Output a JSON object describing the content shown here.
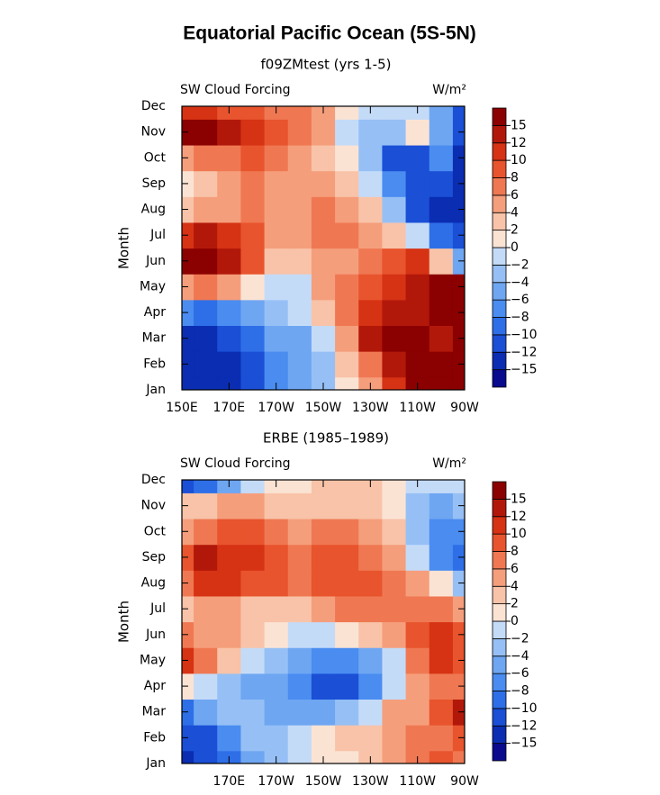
{
  "title": "Equatorial Pacific Ocean (5S-5N)",
  "chart_data": [
    {
      "type": "contour",
      "subtitle": "f09ZMtest (yrs 1-5)",
      "left_label": "SW Cloud Forcing",
      "right_label": "W/m²",
      "ylabel": "Month",
      "categories": [
        "Jan",
        "Feb",
        "Mar",
        "Apr",
        "May",
        "Jun",
        "Jul",
        "Aug",
        "Sep",
        "Oct",
        "Nov",
        "Dec"
      ],
      "x": [
        150,
        160,
        170,
        180,
        190,
        200,
        210,
        220,
        230,
        240,
        250,
        260,
        270
      ],
      "xlim": [
        150,
        270
      ],
      "xticks": [
        {
          "value": 150,
          "label": "150E"
        },
        {
          "value": 170,
          "label": "170E"
        },
        {
          "value": 190,
          "label": "170W"
        },
        {
          "value": 210,
          "label": "150W"
        },
        {
          "value": 230,
          "label": "130W"
        },
        {
          "value": 250,
          "label": "110W"
        },
        {
          "value": 270,
          "label": "90W"
        }
      ],
      "z": [
        [
          -15,
          -15,
          -15,
          -12,
          -8,
          -6,
          -4,
          0,
          4,
          10,
          15,
          15,
          15
        ],
        [
          -15,
          -15,
          -15,
          -12,
          -8,
          -6,
          -4,
          2,
          6,
          12,
          15,
          15,
          15
        ],
        [
          -15,
          -15,
          -12,
          -10,
          -6,
          -6,
          -2,
          4,
          12,
          15,
          15,
          12,
          15
        ],
        [
          -8,
          -10,
          -8,
          -6,
          -4,
          -2,
          2,
          6,
          10,
          12,
          12,
          15,
          15
        ],
        [
          4,
          6,
          4,
          0,
          -2,
          -2,
          4,
          6,
          8,
          10,
          12,
          15,
          15
        ],
        [
          15,
          15,
          12,
          8,
          2,
          2,
          4,
          4,
          6,
          8,
          10,
          2,
          -6
        ],
        [
          10,
          12,
          10,
          8,
          4,
          4,
          6,
          6,
          4,
          2,
          -2,
          -10,
          -12
        ],
        [
          2,
          4,
          4,
          6,
          4,
          4,
          6,
          4,
          2,
          -4,
          -12,
          -15,
          -15
        ],
        [
          0,
          2,
          4,
          6,
          4,
          4,
          4,
          2,
          -2,
          -8,
          -12,
          -12,
          -15
        ],
        [
          4,
          6,
          6,
          8,
          6,
          4,
          2,
          0,
          -4,
          -12,
          -12,
          -8,
          -15
        ],
        [
          15,
          15,
          12,
          10,
          8,
          6,
          4,
          -2,
          -4,
          -4,
          0,
          -6,
          -12
        ],
        [
          10,
          10,
          8,
          8,
          6,
          6,
          4,
          0,
          -2,
          -2,
          -2,
          -6,
          -12
        ]
      ],
      "levels": [
        {
          "value": -15,
          "label": "−15"
        },
        {
          "value": -12,
          "label": "−12"
        },
        {
          "value": -10,
          "label": "−10"
        },
        {
          "value": -8,
          "label": "−8"
        },
        {
          "value": -6,
          "label": "−6"
        },
        {
          "value": -4,
          "label": "−4"
        },
        {
          "value": -2,
          "label": "−2"
        },
        0,
        2,
        4,
        6,
        8,
        10,
        12,
        15
      ],
      "colors": [
        "#0a0a8c",
        "#0b2db2",
        "#1a4fd6",
        "#2e6fe8",
        "#4a8cf0",
        "#6ea6f2",
        "#96c0f5",
        "#c4dbf8",
        "#fbe3d4",
        "#f8c3a8",
        "#f59e7c",
        "#ef7852",
        "#e8542d",
        "#d63214",
        "#b2180a",
        "#8b0000"
      ]
    },
    {
      "type": "contour",
      "subtitle": "ERBE (1985–1989)",
      "left_label": "SW Cloud Forcing",
      "right_label": "W/m²",
      "ylabel": "Month",
      "categories": [
        "Jan",
        "Feb",
        "Mar",
        "Apr",
        "May",
        "Jun",
        "Jul",
        "Aug",
        "Sep",
        "Oct",
        "Nov",
        "Dec"
      ],
      "x": [
        150,
        160,
        170,
        180,
        190,
        200,
        210,
        220,
        230,
        240,
        250,
        260,
        270
      ],
      "xlim": [
        150,
        270
      ],
      "xticks": [
        {
          "value": 170,
          "label": "170E"
        },
        {
          "value": 190,
          "label": "170W"
        },
        {
          "value": 210,
          "label": "150W"
        },
        {
          "value": 230,
          "label": "130W"
        },
        {
          "value": 250,
          "label": "110W"
        },
        {
          "value": 270,
          "label": "90W"
        }
      ],
      "z": [
        [
          -15,
          -12,
          -10,
          -6,
          -4,
          -2,
          0,
          0,
          2,
          4,
          6,
          8,
          6
        ],
        [
          -12,
          -12,
          -8,
          -4,
          -4,
          -2,
          0,
          2,
          2,
          4,
          6,
          6,
          8
        ],
        [
          -10,
          -6,
          -4,
          -4,
          -6,
          -6,
          -6,
          -4,
          -2,
          4,
          4,
          8,
          12
        ],
        [
          0,
          -2,
          -4,
          -6,
          -6,
          -8,
          -12,
          -12,
          -8,
          -2,
          4,
          6,
          6
        ],
        [
          10,
          6,
          2,
          -2,
          -4,
          -6,
          -8,
          -8,
          -6,
          -2,
          6,
          10,
          8
        ],
        [
          6,
          4,
          4,
          2,
          0,
          -2,
          -2,
          0,
          2,
          4,
          8,
          10,
          8
        ],
        [
          2,
          4,
          4,
          2,
          2,
          2,
          4,
          6,
          6,
          6,
          6,
          6,
          4
        ],
        [
          6,
          10,
          10,
          8,
          8,
          6,
          8,
          8,
          8,
          6,
          4,
          0,
          -4
        ],
        [
          8,
          12,
          10,
          10,
          8,
          6,
          8,
          8,
          6,
          4,
          -2,
          -8,
          -10
        ],
        [
          4,
          6,
          8,
          8,
          6,
          4,
          6,
          6,
          4,
          2,
          -4,
          -8,
          -8
        ],
        [
          2,
          2,
          4,
          4,
          2,
          2,
          2,
          2,
          2,
          0,
          -4,
          -6,
          -4
        ],
        [
          -12,
          -10,
          -6,
          -2,
          0,
          0,
          2,
          2,
          2,
          0,
          -2,
          -2,
          -2
        ]
      ],
      "levels": [
        {
          "value": -15,
          "label": "−15"
        },
        {
          "value": -12,
          "label": "−12"
        },
        {
          "value": -10,
          "label": "−10"
        },
        {
          "value": -8,
          "label": "−8"
        },
        {
          "value": -6,
          "label": "−6"
        },
        {
          "value": -4,
          "label": "−4"
        },
        {
          "value": -2,
          "label": "−2"
        },
        0,
        2,
        4,
        6,
        8,
        10,
        12,
        15
      ],
      "colors": [
        "#0a0a8c",
        "#0b2db2",
        "#1a4fd6",
        "#2e6fe8",
        "#4a8cf0",
        "#6ea6f2",
        "#96c0f5",
        "#c4dbf8",
        "#fbe3d4",
        "#f8c3a8",
        "#f59e7c",
        "#ef7852",
        "#e8542d",
        "#d63214",
        "#b2180a",
        "#8b0000"
      ]
    }
  ]
}
